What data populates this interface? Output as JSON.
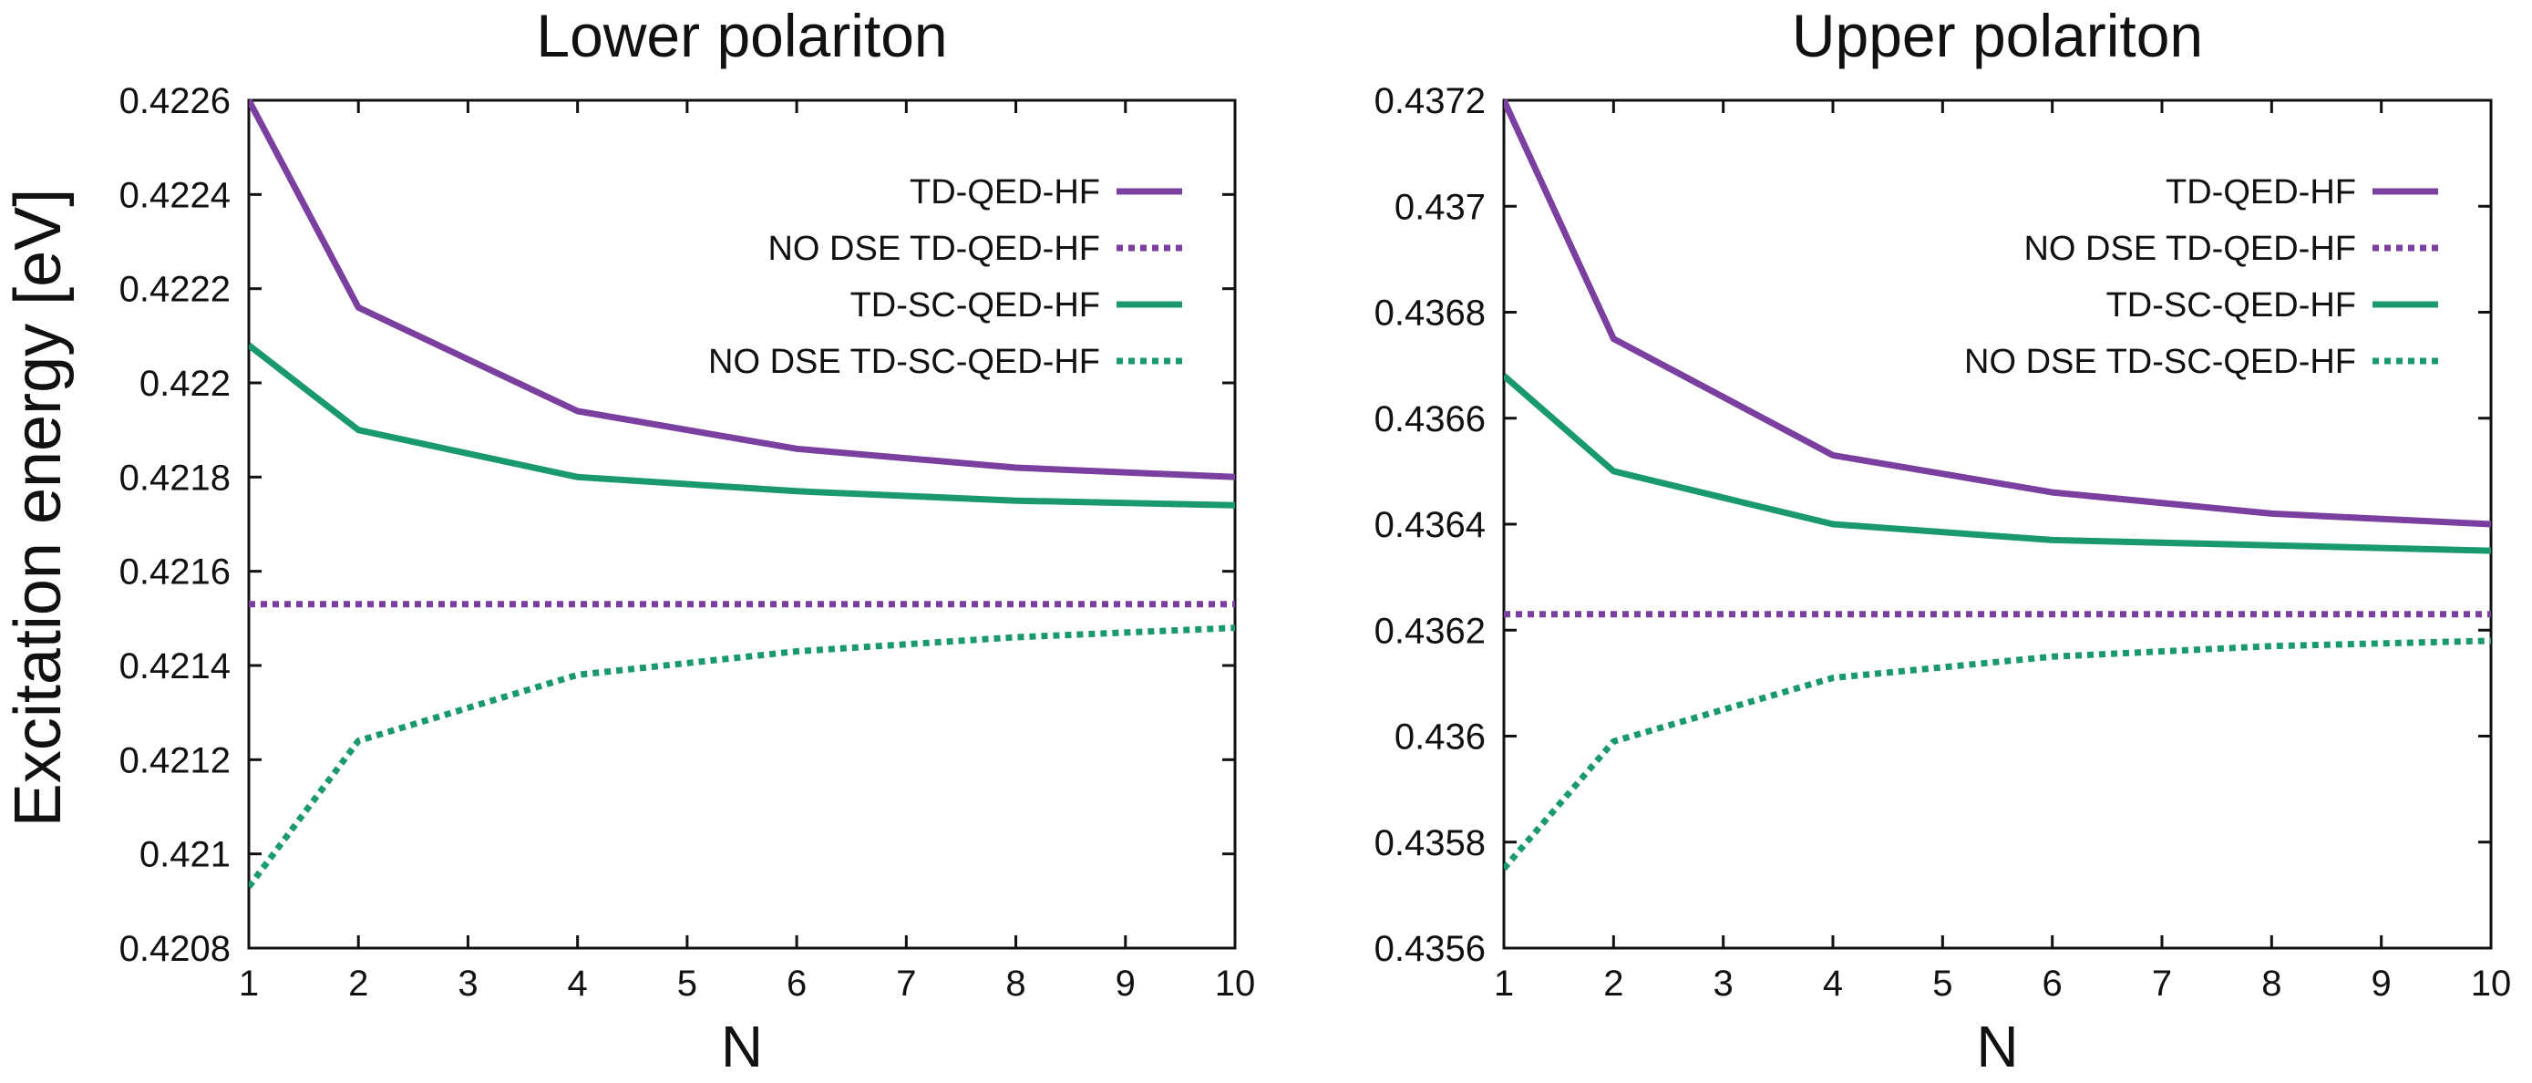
{
  "ylabel": "Excitation energy [eV]",
  "colors": {
    "purple": "#7b3fa0",
    "green": "#1a9a6c"
  },
  "chart_data": [
    {
      "type": "line",
      "title": "Lower polariton",
      "xlabel": "N",
      "xlim": [
        1,
        10
      ],
      "ylim": [
        0.4208,
        0.4226
      ],
      "xticks": [
        1,
        2,
        3,
        4,
        5,
        6,
        7,
        8,
        9,
        10
      ],
      "xtick_labels": [
        "1",
        "2",
        "3",
        "4",
        "5",
        "6",
        "7",
        "8",
        "9",
        "10"
      ],
      "yticks": [
        0.4208,
        0.421,
        0.4212,
        0.4214,
        0.4216,
        0.4218,
        0.422,
        0.4222,
        0.4224,
        0.4226
      ],
      "ytick_labels": [
        "0.4208",
        "0.421",
        "0.4212",
        "0.4214",
        "0.4216",
        "0.4218",
        "0.422",
        "0.4222",
        "0.4224",
        "0.4226"
      ],
      "legend_position": "top-right",
      "series": [
        {
          "name": "TD-QED-HF",
          "color": "#7b3fa0",
          "dash": "solid",
          "x": [
            1,
            2,
            4,
            6,
            8,
            10
          ],
          "y": [
            0.4226,
            0.42216,
            0.42194,
            0.42186,
            0.42182,
            0.4218
          ]
        },
        {
          "name": "NO DSE TD-QED-HF",
          "color": "#7b3fa0",
          "dash": "dotted",
          "x": [
            1,
            2,
            4,
            6,
            8,
            10
          ],
          "y": [
            0.42153,
            0.42153,
            0.42153,
            0.42153,
            0.42153,
            0.42153
          ]
        },
        {
          "name": "TD-SC-QED-HF",
          "color": "#1a9a6c",
          "dash": "solid",
          "x": [
            1,
            2,
            4,
            6,
            8,
            10
          ],
          "y": [
            0.42208,
            0.4219,
            0.4218,
            0.42177,
            0.42175,
            0.42174
          ]
        },
        {
          "name": "NO DSE TD-SC-QED-HF",
          "color": "#1a9a6c",
          "dash": "dotted",
          "x": [
            1,
            2,
            4,
            6,
            8,
            10
          ],
          "y": [
            0.42093,
            0.42124,
            0.42138,
            0.42143,
            0.42146,
            0.42148
          ]
        }
      ]
    },
    {
      "type": "line",
      "title": "Upper polariton",
      "xlabel": "N",
      "xlim": [
        1,
        10
      ],
      "ylim": [
        0.4356,
        0.4372
      ],
      "xticks": [
        1,
        2,
        3,
        4,
        5,
        6,
        7,
        8,
        9,
        10
      ],
      "xtick_labels": [
        "1",
        "2",
        "3",
        "4",
        "5",
        "6",
        "7",
        "8",
        "9",
        "10"
      ],
      "yticks": [
        0.4356,
        0.4358,
        0.436,
        0.4362,
        0.4364,
        0.4366,
        0.4368,
        0.437,
        0.4372
      ],
      "ytick_labels": [
        "0.4356",
        "0.4358",
        "0.436",
        "0.4362",
        "0.4364",
        "0.4366",
        "0.4368",
        "0.437",
        "0.4372"
      ],
      "legend_position": "top-right",
      "series": [
        {
          "name": "TD-QED-HF",
          "color": "#7b3fa0",
          "dash": "solid",
          "x": [
            1,
            2,
            4,
            6,
            8,
            10
          ],
          "y": [
            0.4372,
            0.43675,
            0.43653,
            0.43646,
            0.43642,
            0.4364
          ]
        },
        {
          "name": "NO DSE TD-QED-HF",
          "color": "#7b3fa0",
          "dash": "dotted",
          "x": [
            1,
            2,
            4,
            6,
            8,
            10
          ],
          "y": [
            0.43623,
            0.43623,
            0.43623,
            0.43623,
            0.43623,
            0.43623
          ]
        },
        {
          "name": "TD-SC-QED-HF",
          "color": "#1a9a6c",
          "dash": "solid",
          "x": [
            1,
            2,
            4,
            6,
            8,
            10
          ],
          "y": [
            0.43668,
            0.4365,
            0.4364,
            0.43637,
            0.43636,
            0.43635
          ]
        },
        {
          "name": "NO DSE TD-SC-QED-HF",
          "color": "#1a9a6c",
          "dash": "dotted",
          "x": [
            1,
            2,
            4,
            6,
            8,
            10
          ],
          "y": [
            0.43575,
            0.43599,
            0.43611,
            0.43615,
            0.43617,
            0.43618
          ]
        }
      ]
    }
  ]
}
